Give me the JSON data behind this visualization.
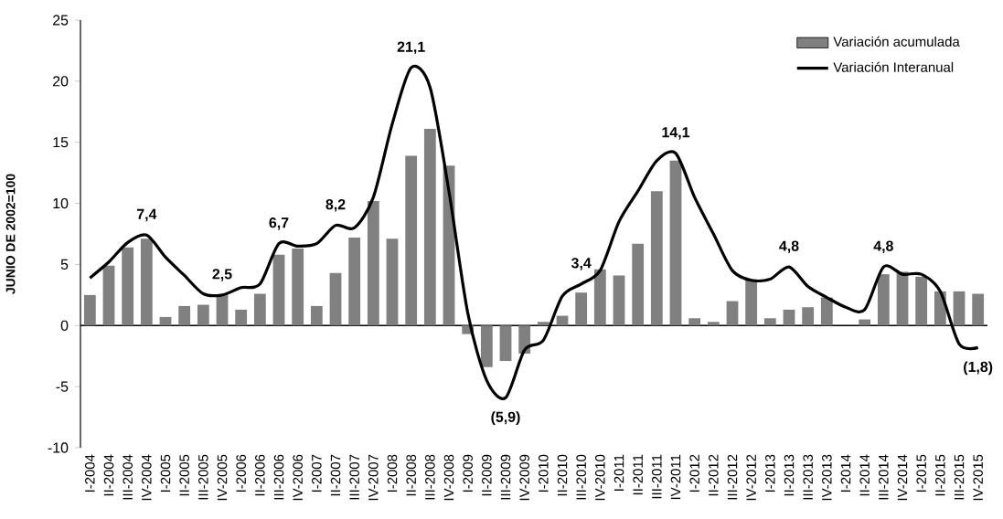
{
  "chart_data": {
    "type": "bar",
    "ylabel": "JUNIO DE 2002=100",
    "categories": [
      "I-2004",
      "II-2004",
      "III-2004",
      "IV-2004",
      "I-2005",
      "II-2005",
      "III-2005",
      "IV-2005",
      "I-2006",
      "II-2006",
      "III-2006",
      "IV-2006",
      "I-2007",
      "II-2007",
      "III-2007",
      "IV-2007",
      "I-2008",
      "II-2008",
      "III-2008",
      "IV-2008",
      "I-2009",
      "II-2009",
      "III-2009",
      "IV-2009",
      "I-2010",
      "II-2010",
      "III-2010",
      "IV-2010",
      "I-2011",
      "II-2011",
      "III-2011",
      "IV-2011",
      "I-2012",
      "II-2012",
      "III-2012",
      "IV-2012",
      "I-2013",
      "II-2013",
      "III-2013",
      "IV-2013",
      "I-2014",
      "II-2014",
      "III-2014",
      "IV-2014",
      "I-2015",
      "II-2015",
      "III-2015",
      "IV-2015"
    ],
    "series": [
      {
        "name": "Variación acumulada",
        "color": "#808080",
        "values": [
          2.5,
          4.9,
          6.4,
          7.1,
          0.7,
          1.6,
          1.7,
          2.5,
          1.3,
          2.6,
          5.8,
          6.3,
          1.6,
          4.3,
          7.2,
          10.2,
          7.1,
          13.9,
          16.1,
          13.1,
          -0.7,
          -3.4,
          -2.9,
          -2.3,
          0.3,
          0.8,
          2.7,
          4.6,
          4.1,
          6.7,
          11.0,
          13.5,
          0.6,
          0.3,
          2.0,
          3.8,
          0.6,
          1.3,
          1.5,
          2.3,
          0,
          0.5,
          4.2,
          4.4,
          4.0,
          2.8,
          2.8,
          2.6
        ]
      },
      {
        "name": "Variación Interanual",
        "type": "line",
        "color": "#000000",
        "values": [
          3.9,
          5.2,
          6.8,
          7.4,
          5.6,
          4.1,
          2.6,
          2.5,
          3.1,
          3.4,
          6.7,
          6.5,
          6.7,
          8.2,
          8.0,
          10.5,
          16.5,
          21.1,
          19.5,
          11.0,
          1.0,
          -4.5,
          -5.9,
          -2.0,
          -1.2,
          2.4,
          3.4,
          4.5,
          8.5,
          11.0,
          13.5,
          14.1,
          10.5,
          7.5,
          4.5,
          3.7,
          3.8,
          4.8,
          3.2,
          2.3,
          1.5,
          1.3,
          4.8,
          4.2,
          4.2,
          2.8,
          -1.5,
          -1.8
        ],
        "value_labels": [
          null,
          null,
          null,
          "7,4",
          null,
          null,
          null,
          "2,5",
          null,
          null,
          "6,7",
          null,
          null,
          "8,2",
          null,
          null,
          null,
          "21,1",
          null,
          null,
          null,
          null,
          "(5,9)",
          null,
          null,
          null,
          "3,4",
          null,
          null,
          null,
          null,
          "14,1",
          null,
          null,
          null,
          null,
          null,
          "4,8",
          null,
          null,
          null,
          null,
          "4,8",
          null,
          null,
          null,
          null,
          "(1,8)"
        ]
      }
    ],
    "ylim": [
      -10,
      25
    ],
    "yticks": [
      -10,
      -5,
      0,
      5,
      10,
      15,
      20,
      25
    ],
    "legend": "top right",
    "marker": "none"
  }
}
